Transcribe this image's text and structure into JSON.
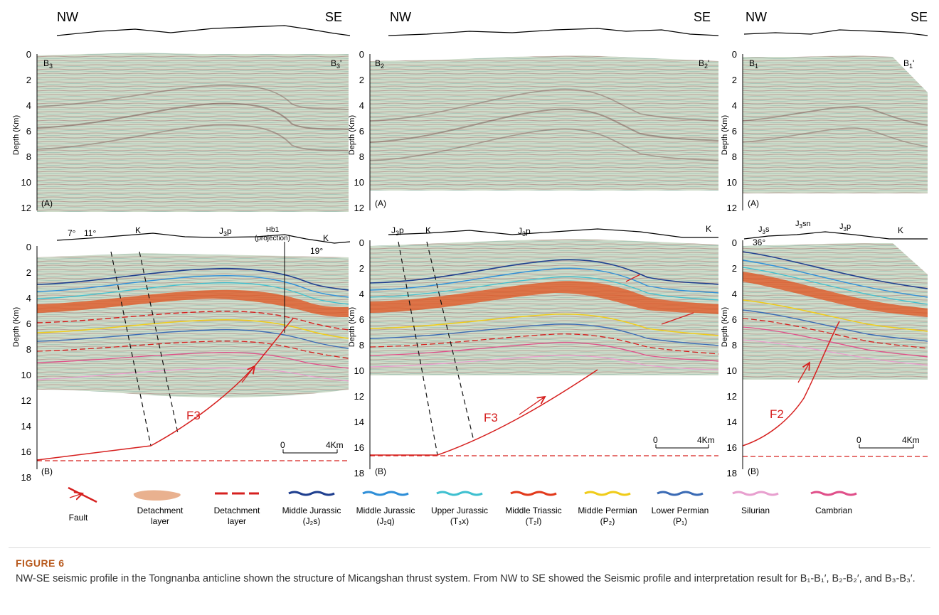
{
  "figure": {
    "columns": [
      {
        "id": "b3",
        "nw": "NW",
        "se": "SE",
        "line_start": "B",
        "line_start_sub": "3",
        "line_end": "B",
        "line_end_sub": "3",
        "label_a": "(A)",
        "label_b": "(B)",
        "depth_label": "Depth (Km)",
        "ticks_a": [
          "0",
          "2",
          "4",
          "6",
          "8",
          "10",
          "12"
        ],
        "ticks_b": [
          "0",
          "2",
          "4",
          "6",
          "8",
          "10",
          "12",
          "14",
          "16",
          "18"
        ],
        "surface_labels": [
          "7°",
          "11°",
          "K",
          "J",
          "p",
          "19°",
          "K"
        ],
        "well_label_1": "Hb1",
        "well_label_2": "(projection)",
        "fault": "F3",
        "scale_0": "0",
        "scale_end": "4Km"
      },
      {
        "id": "b2",
        "nw": "NW",
        "se": "SE",
        "line_start": "B",
        "line_start_sub": "2",
        "line_end": "B",
        "line_end_sub": "2",
        "label_a": "(A)",
        "label_b": "(B)",
        "depth_label": "Depth (Km)",
        "ticks_a": [
          "0",
          "2",
          "4",
          "6",
          "8",
          "10",
          "12"
        ],
        "ticks_b": [
          "0",
          "2",
          "4",
          "6",
          "8",
          "10",
          "12",
          "14",
          "16",
          "18"
        ],
        "surface_labels": [
          "J",
          "p",
          "K",
          "J",
          "p",
          "K"
        ],
        "fault": "F3",
        "scale_0": "0",
        "scale_end": "4Km"
      },
      {
        "id": "b1",
        "nw": "NW",
        "se": "SE",
        "line_start": "B",
        "line_start_sub": "1",
        "line_end": "B",
        "line_end_sub": "1",
        "label_a": "(A)",
        "label_b": "(B)",
        "depth_label": "Depth (Km)",
        "ticks_a": [
          "0",
          "2",
          "4",
          "6",
          "8",
          "10",
          "12"
        ],
        "ticks_b": [
          "0",
          "2",
          "4",
          "6",
          "8",
          "10",
          "12",
          "14",
          "16",
          "18"
        ],
        "surface_labels": [
          "J",
          "s",
          "J",
          "sn",
          "J",
          "p",
          "K",
          "36°"
        ],
        "fault": "F2",
        "scale_0": "0",
        "scale_end": "4Km"
      }
    ],
    "legend": [
      {
        "key": "fault",
        "line1": "Fault",
        "line2": "",
        "color": "#d6201f"
      },
      {
        "key": "detach-body",
        "line1": "Detachment",
        "line2": "layer",
        "color": "#e9b18f"
      },
      {
        "key": "detach-line",
        "line1": "Detachment",
        "line2": "layer",
        "color": "#d6201f"
      },
      {
        "key": "j2s",
        "line1": "Middle Jurassic",
        "line2": "(J₂s)",
        "color": "#1f3f8f"
      },
      {
        "key": "j2q",
        "line1": "Middle Jurassic",
        "line2": "(J₂q)",
        "color": "#2f8fd8"
      },
      {
        "key": "t3x",
        "line1": "Upper Jurassic",
        "line2": "(T₃x)",
        "color": "#3fc0d0"
      },
      {
        "key": "t2l",
        "line1": "Middle Triassic",
        "line2": "(T₂l)",
        "color": "#e23a1c"
      },
      {
        "key": "p2",
        "line1": "Middle Permian",
        "line2": "(P₂)",
        "color": "#f0cc1a"
      },
      {
        "key": "p1",
        "line1": "Lower Permian",
        "line2": "(P₁)",
        "color": "#3b6bb5"
      },
      {
        "key": "silurian",
        "line1": "Silurian",
        "line2": "",
        "color": "#e8a0cf"
      },
      {
        "key": "cambrian",
        "line1": "Cambrian",
        "line2": "",
        "color": "#e0508a"
      }
    ]
  },
  "caption": {
    "title": "FIGURE 6",
    "text": "NW-SE seismic profile in the Tongnanba anticline shown the structure of Micangshan thrust system. From NW to SE showed the Seismic profile and interpretation result for B₁-B₁′, B₂-B₂′, and B₃-B₃′."
  }
}
